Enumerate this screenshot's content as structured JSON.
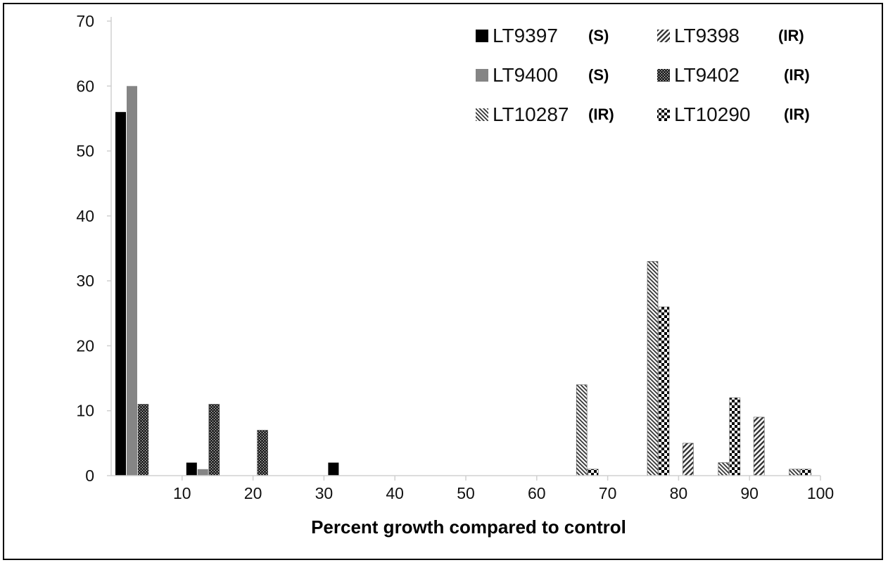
{
  "chart_data": {
    "type": "bar",
    "title": "",
    "xlabel": "Percent growth compared to control",
    "ylabel": "",
    "xlim": [
      0,
      100
    ],
    "ylim": [
      0,
      70
    ],
    "x_ticks": [
      "10",
      "20",
      "30",
      "40",
      "50",
      "60",
      "70",
      "80",
      "90",
      "100"
    ],
    "y_ticks": [
      "0",
      "10",
      "20",
      "30",
      "40",
      "50",
      "60",
      "70"
    ],
    "bin_width": 10,
    "bin_upper_edges": [
      5,
      10,
      15,
      20,
      25,
      30,
      35,
      40,
      45,
      50,
      55,
      60,
      65,
      70,
      75,
      80,
      85,
      90,
      95,
      100
    ],
    "legend_position": "top-right",
    "grid": false,
    "series": [
      {
        "name": "LT9397",
        "tag": "(S)",
        "fill": "solid-black",
        "color": "#000000",
        "values": [
          56,
          0,
          2,
          0,
          0,
          0,
          2,
          0,
          0,
          0,
          0,
          0,
          0,
          0,
          0,
          0,
          0,
          0,
          0,
          0
        ]
      },
      {
        "name": "LT9400",
        "tag": "(S)",
        "fill": "solid-gray",
        "color": "#858585",
        "values": [
          60,
          0,
          1,
          0,
          0,
          0,
          0,
          0,
          0,
          0,
          0,
          0,
          0,
          0,
          0,
          0,
          0,
          0,
          0,
          0
        ]
      },
      {
        "name": "LT9402",
        "tag": "(IR)",
        "fill": "dense-crosshatch",
        "color": "#333333",
        "values": [
          11,
          0,
          11,
          0,
          7,
          0,
          0,
          0,
          0,
          0,
          0,
          0,
          0,
          0,
          0,
          0,
          0,
          0,
          0,
          0
        ]
      },
      {
        "name": "LT10287",
        "tag": "(IR)",
        "fill": "narrow-diagonal",
        "color": "#333333",
        "values": [
          0,
          0,
          0,
          0,
          0,
          0,
          0,
          0,
          0,
          0,
          0,
          0,
          0,
          14,
          0,
          33,
          0,
          2,
          0,
          1
        ]
      },
      {
        "name": "LT10290",
        "tag": "(IR)",
        "fill": "checkerboard",
        "color": "#000000",
        "values": [
          0,
          0,
          0,
          0,
          0,
          0,
          0,
          0,
          0,
          0,
          0,
          0,
          0,
          1,
          0,
          26,
          0,
          12,
          0,
          1
        ]
      },
      {
        "name": "LT9398",
        "tag": "(IR)",
        "fill": "wide-diagonal",
        "color": "#333333",
        "values": [
          0,
          0,
          0,
          0,
          0,
          0,
          0,
          0,
          0,
          0,
          0,
          0,
          0,
          0,
          0,
          0,
          5,
          0,
          9,
          0
        ]
      }
    ],
    "legend_rows": [
      [
        {
          "name": "LT9397",
          "tag": "(S)"
        },
        {
          "name": "LT9398",
          "tag": "(IR)"
        }
      ],
      [
        {
          "name": "LT9400",
          "tag": "(S)"
        },
        {
          "name": "LT9402",
          "tag": "(IR)"
        }
      ],
      [
        {
          "name": "LT10287",
          "tag": "(IR)"
        },
        {
          "name": "LT10290",
          "tag": "(IR)"
        }
      ]
    ]
  }
}
